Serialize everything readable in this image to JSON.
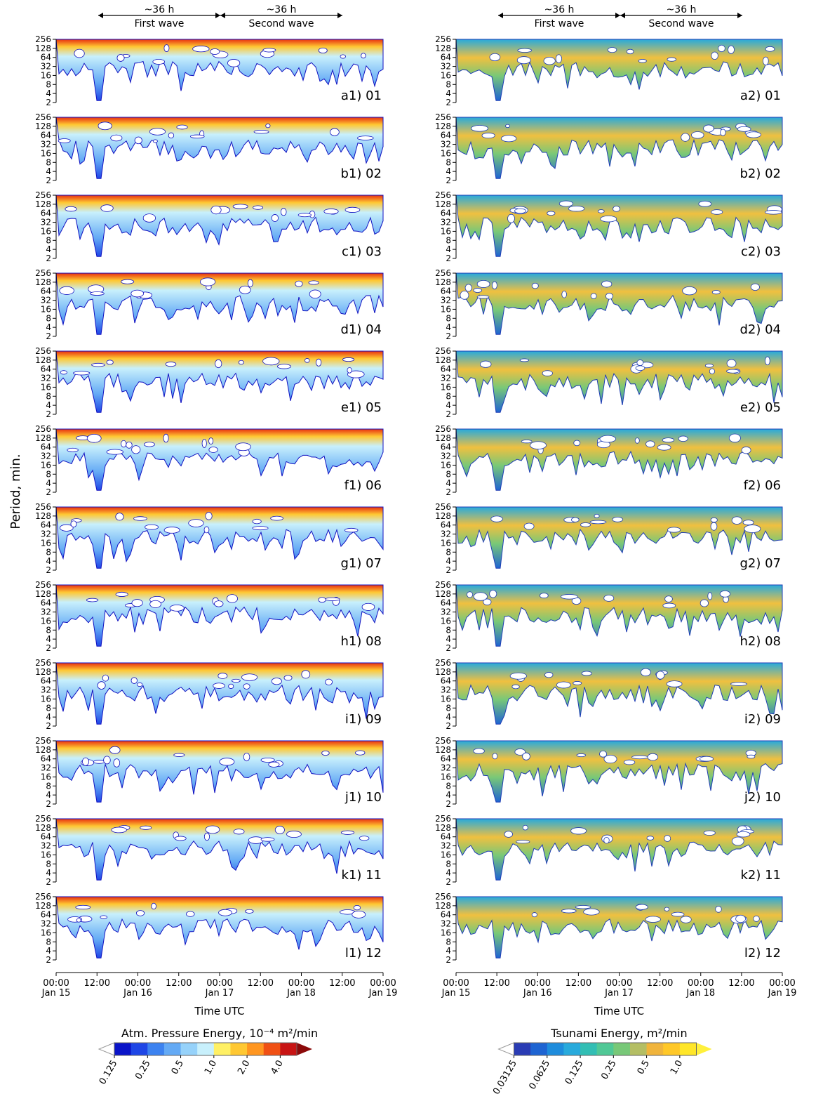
{
  "chart_data": [
    {
      "type": "contour",
      "panels": [
        "a1) 01",
        "b1) 02",
        "c1) 03",
        "d1) 04",
        "e1) 05",
        "f1) 06",
        "g1) 07",
        "h1) 08",
        "i1) 09",
        "j1) 10",
        "k1) 11",
        "l1) 12"
      ],
      "ylabel": "Period, min.",
      "xlabel": "Time UTC",
      "ylim": [
        2,
        256
      ],
      "ylog": true,
      "yticks": [
        256,
        128,
        64,
        32,
        16,
        8,
        4,
        2
      ],
      "xlim": [
        0,
        96
      ],
      "xticks": [
        {
          "value": 0,
          "label": "00:00\nJan 15"
        },
        {
          "value": 12,
          "label": "12:00"
        },
        {
          "value": 24,
          "label": "00:00\nJan 16"
        },
        {
          "value": 36,
          "label": "12:00"
        },
        {
          "value": 48,
          "label": "00:00\nJan 17"
        },
        {
          "value": 60,
          "label": "12:00"
        },
        {
          "value": 72,
          "label": "00:00\nJan 18"
        },
        {
          "value": 84,
          "label": "12:00"
        },
        {
          "value": 96,
          "label": "00:00\nJan 19"
        }
      ],
      "annotations": [
        {
          "span": "~36 h",
          "label": "First wave"
        },
        {
          "span": "~36 h",
          "label": "Second wave"
        }
      ],
      "colorbar": {
        "label": "Atm. Pressure Energy, 10⁻⁴ m²/min",
        "ticks": [
          0.125,
          0.25,
          0.5,
          {
            "value": 1,
            "label": "1.0"
          },
          {
            "value": 2,
            "label": "2.0"
          },
          {
            "value": 4,
            "label": "4.0"
          }
        ],
        "colors": [
          "#0a14c8",
          "#1e46e6",
          "#3c82f0",
          "#64aaf5",
          "#96d2fa",
          "#c8f0fc",
          "#fff064",
          "#ffc832",
          "#ff9620",
          "#f05014",
          "#c81414"
        ],
        "over": "#8c0a0a"
      }
    },
    {
      "type": "contour",
      "panels": [
        "a2) 01",
        "b2) 02",
        "c2) 03",
        "d2) 04",
        "e2) 05",
        "f2) 06",
        "g2) 07",
        "h2) 08",
        "i2) 09",
        "j2) 10",
        "k2) 11",
        "l2) 12"
      ],
      "xlabel": "Time UTC",
      "ylim": [
        2,
        256
      ],
      "ylog": true,
      "yticks": [
        256,
        128,
        64,
        32,
        16,
        8,
        4,
        2
      ],
      "xlim": [
        0,
        96
      ],
      "xticks": [
        {
          "value": 0,
          "label": "00:00\nJan 15"
        },
        {
          "value": 12,
          "label": "12:00"
        },
        {
          "value": 24,
          "label": "00:00\nJan 16"
        },
        {
          "value": 36,
          "label": "12:00"
        },
        {
          "value": 48,
          "label": "00:00\nJan 17"
        },
        {
          "value": 60,
          "label": "12:00"
        },
        {
          "value": 72,
          "label": "00:00\nJan 18"
        },
        {
          "value": 84,
          "label": "12:00"
        },
        {
          "value": 96,
          "label": "00:00\nJan 19"
        }
      ],
      "annotations": [
        {
          "span": "~36 h",
          "label": "First wave"
        },
        {
          "span": "~36 h",
          "label": "Second wave"
        }
      ],
      "colorbar": {
        "label": "Tsunami Energy, m²/min",
        "ticks": [
          0.03125,
          0.0625,
          0.125,
          0.25,
          0.5,
          {
            "value": 1,
            "label": "1.0"
          }
        ],
        "colors": [
          "#2a3cb4",
          "#1e64d2",
          "#1e8cdc",
          "#28aadc",
          "#32beb4",
          "#50c896",
          "#78c878",
          "#b4be64",
          "#f0b43c",
          "#ffc828",
          "#ffe628"
        ],
        "over": "#fff03c"
      }
    }
  ]
}
